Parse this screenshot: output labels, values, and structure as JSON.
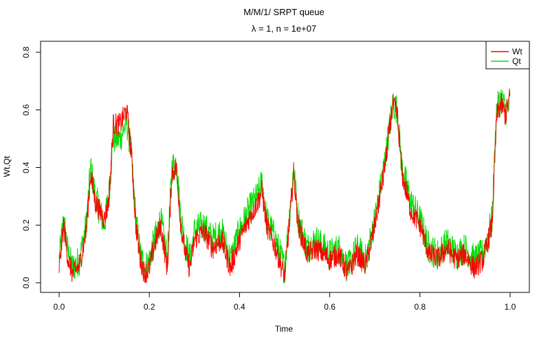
{
  "chart_data": {
    "type": "line",
    "title": "M/M/1/ SRPT queue",
    "subtitle_symbol": "λ",
    "subtitle_rest": " = 1, n = 1e+07",
    "xlabel": "Time",
    "ylabel": "Wt,Qt",
    "xlim": [
      0,
      1
    ],
    "ylim": [
      0,
      0.8
    ],
    "xticks": [
      0.0,
      0.2,
      0.4,
      0.6,
      0.8,
      1.0
    ],
    "xtick_labels": [
      "0.0",
      "0.2",
      "0.4",
      "0.6",
      "0.8",
      "1.0"
    ],
    "yticks": [
      0.0,
      0.2,
      0.4,
      0.6,
      0.8
    ],
    "ytick_labels": [
      "0.0",
      "0.2",
      "0.4",
      "0.6",
      "0.8"
    ],
    "grid": false,
    "legend_position": "top-right",
    "series": [
      {
        "name": "Wt",
        "color": "#FF0000",
        "x": [
          0.0,
          0.01,
          0.02,
          0.03,
          0.045,
          0.06,
          0.07,
          0.08,
          0.1,
          0.11,
          0.12,
          0.135,
          0.15,
          0.16,
          0.17,
          0.18,
          0.19,
          0.2,
          0.21,
          0.225,
          0.24,
          0.25,
          0.26,
          0.27,
          0.28,
          0.29,
          0.3,
          0.32,
          0.34,
          0.36,
          0.38,
          0.4,
          0.42,
          0.44,
          0.45,
          0.46,
          0.48,
          0.5,
          0.51,
          0.52,
          0.53,
          0.55,
          0.57,
          0.6,
          0.62,
          0.64,
          0.66,
          0.68,
          0.7,
          0.72,
          0.74,
          0.75,
          0.76,
          0.78,
          0.8,
          0.82,
          0.84,
          0.86,
          0.88,
          0.9,
          0.92,
          0.94,
          0.96,
          0.97,
          0.98,
          0.99,
          1.0
        ],
        "values": [
          0.05,
          0.2,
          0.08,
          0.03,
          0.06,
          0.18,
          0.38,
          0.28,
          0.22,
          0.28,
          0.55,
          0.55,
          0.6,
          0.45,
          0.2,
          0.08,
          0.03,
          0.05,
          0.12,
          0.2,
          0.05,
          0.38,
          0.4,
          0.2,
          0.1,
          0.05,
          0.15,
          0.18,
          0.12,
          0.15,
          0.05,
          0.15,
          0.22,
          0.28,
          0.32,
          0.2,
          0.12,
          0.02,
          0.2,
          0.38,
          0.2,
          0.1,
          0.12,
          0.08,
          0.1,
          0.03,
          0.1,
          0.06,
          0.2,
          0.38,
          0.62,
          0.58,
          0.38,
          0.25,
          0.2,
          0.1,
          0.08,
          0.12,
          0.08,
          0.1,
          0.05,
          0.08,
          0.2,
          0.58,
          0.62,
          0.58,
          0.65
        ],
        "noise": 0.04
      },
      {
        "name": "Qt",
        "color": "#00DD00",
        "x": [
          0.0,
          0.01,
          0.02,
          0.03,
          0.045,
          0.06,
          0.07,
          0.08,
          0.1,
          0.11,
          0.12,
          0.135,
          0.15,
          0.16,
          0.17,
          0.18,
          0.19,
          0.2,
          0.21,
          0.225,
          0.24,
          0.25,
          0.26,
          0.27,
          0.28,
          0.29,
          0.3,
          0.32,
          0.34,
          0.36,
          0.38,
          0.4,
          0.42,
          0.44,
          0.45,
          0.46,
          0.48,
          0.5,
          0.51,
          0.52,
          0.53,
          0.55,
          0.57,
          0.6,
          0.62,
          0.64,
          0.66,
          0.68,
          0.7,
          0.72,
          0.74,
          0.75,
          0.76,
          0.78,
          0.8,
          0.82,
          0.84,
          0.86,
          0.88,
          0.9,
          0.92,
          0.94,
          0.96,
          0.97,
          0.98,
          0.99,
          1.0
        ],
        "values": [
          0.08,
          0.22,
          0.1,
          0.05,
          0.08,
          0.2,
          0.4,
          0.3,
          0.2,
          0.3,
          0.5,
          0.5,
          0.56,
          0.45,
          0.22,
          0.1,
          0.05,
          0.08,
          0.14,
          0.22,
          0.08,
          0.4,
          0.42,
          0.22,
          0.14,
          0.08,
          0.18,
          0.2,
          0.15,
          0.18,
          0.08,
          0.18,
          0.25,
          0.3,
          0.35,
          0.22,
          0.15,
          0.05,
          0.22,
          0.4,
          0.22,
          0.12,
          0.15,
          0.1,
          0.12,
          0.05,
          0.12,
          0.08,
          0.22,
          0.4,
          0.62,
          0.6,
          0.4,
          0.28,
          0.22,
          0.12,
          0.1,
          0.14,
          0.1,
          0.12,
          0.08,
          0.1,
          0.22,
          0.6,
          0.64,
          0.6,
          0.62
        ],
        "noise": 0.055
      }
    ]
  }
}
